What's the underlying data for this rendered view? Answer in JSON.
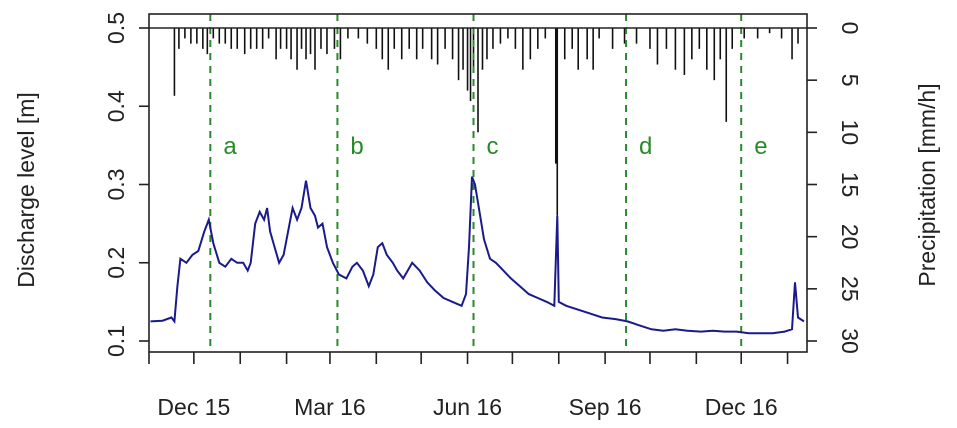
{
  "chart_data": {
    "type": "line",
    "xlabel": "",
    "ylabel_left": "Discharge level [m]",
    "ylabel_right": "Precipitation [mm/h]",
    "ylim_left": [
      0.1,
      0.5
    ],
    "ylim_right_inverted": [
      0,
      30
    ],
    "xlim_days_label": "Nov 2015 – Jan 2017",
    "x_ticks": [
      {
        "label": "Dec 15",
        "date": "2015-12-01"
      },
      {
        "label": "Mar 16",
        "date": "2016-03-01"
      },
      {
        "label": "Jun 16",
        "date": "2016-06-01"
      },
      {
        "label": "Sep 16",
        "date": "2016-09-01"
      },
      {
        "label": "Dec 16",
        "date": "2016-12-01"
      }
    ],
    "x_minor_ticks": [
      "2015-11-01",
      "2016-01-01",
      "2016-02-01",
      "2016-04-01",
      "2016-05-01",
      "2016-07-01",
      "2016-08-01",
      "2016-10-01",
      "2016-11-01",
      "2017-01-01"
    ],
    "y_ticks_left": [
      0.1,
      0.2,
      0.3,
      0.4,
      0.5
    ],
    "y_tick_labels_left": [
      "0.1",
      "0.2",
      "0.3",
      "0.4",
      "0.5"
    ],
    "y_ticks_right": [
      0,
      5,
      10,
      15,
      20,
      25,
      30
    ],
    "y_tick_labels_right": [
      "0",
      "5",
      "10",
      "15",
      "20",
      "25",
      "30"
    ],
    "events": [
      {
        "label": "a",
        "date": "2015-12-12"
      },
      {
        "label": "b",
        "date": "2016-03-06"
      },
      {
        "label": "c",
        "date": "2016-06-05"
      },
      {
        "label": "d",
        "date": "2016-09-15"
      },
      {
        "label": "e",
        "date": "2016-12-01"
      }
    ],
    "series": [
      {
        "kind": "discharge",
        "color": "#1a1a8c",
        "points": [
          [
            "2015-11-02",
            0.125
          ],
          [
            "2015-11-10",
            0.126
          ],
          [
            "2015-11-16",
            0.13
          ],
          [
            "2015-11-18",
            0.125
          ],
          [
            "2015-11-20",
            0.17
          ],
          [
            "2015-11-22",
            0.205
          ],
          [
            "2015-11-26",
            0.2
          ],
          [
            "2015-11-30",
            0.21
          ],
          [
            "2015-12-04",
            0.215
          ],
          [
            "2015-12-08",
            0.24
          ],
          [
            "2015-12-11",
            0.255
          ],
          [
            "2015-12-14",
            0.225
          ],
          [
            "2015-12-18",
            0.2
          ],
          [
            "2015-12-22",
            0.195
          ],
          [
            "2015-12-26",
            0.205
          ],
          [
            "2015-12-30",
            0.2
          ],
          [
            "2016-01-03",
            0.2
          ],
          [
            "2016-01-06",
            0.19
          ],
          [
            "2016-01-08",
            0.2
          ],
          [
            "2016-01-11",
            0.25
          ],
          [
            "2016-01-14",
            0.265
          ],
          [
            "2016-01-17",
            0.255
          ],
          [
            "2016-01-19",
            0.27
          ],
          [
            "2016-01-21",
            0.24
          ],
          [
            "2016-01-24",
            0.22
          ],
          [
            "2016-01-27",
            0.2
          ],
          [
            "2016-01-30",
            0.21
          ],
          [
            "2016-02-03",
            0.25
          ],
          [
            "2016-02-05",
            0.27
          ],
          [
            "2016-02-08",
            0.255
          ],
          [
            "2016-02-11",
            0.27
          ],
          [
            "2016-02-14",
            0.305
          ],
          [
            "2016-02-17",
            0.27
          ],
          [
            "2016-02-20",
            0.26
          ],
          [
            "2016-02-22",
            0.245
          ],
          [
            "2016-02-25",
            0.25
          ],
          [
            "2016-02-28",
            0.22
          ],
          [
            "2016-03-03",
            0.2
          ],
          [
            "2016-03-07",
            0.185
          ],
          [
            "2016-03-12",
            0.18
          ],
          [
            "2016-03-16",
            0.195
          ],
          [
            "2016-03-19",
            0.2
          ],
          [
            "2016-03-23",
            0.19
          ],
          [
            "2016-03-27",
            0.17
          ],
          [
            "2016-03-30",
            0.185
          ],
          [
            "2016-04-02",
            0.22
          ],
          [
            "2016-04-05",
            0.225
          ],
          [
            "2016-04-08",
            0.21
          ],
          [
            "2016-04-12",
            0.2
          ],
          [
            "2016-04-15",
            0.19
          ],
          [
            "2016-04-19",
            0.18
          ],
          [
            "2016-04-22",
            0.19
          ],
          [
            "2016-04-25",
            0.2
          ],
          [
            "2016-04-30",
            0.19
          ],
          [
            "2016-05-05",
            0.175
          ],
          [
            "2016-05-10",
            0.165
          ],
          [
            "2016-05-16",
            0.155
          ],
          [
            "2016-05-22",
            0.15
          ],
          [
            "2016-05-28",
            0.145
          ],
          [
            "2016-05-31",
            0.16
          ],
          [
            "2016-06-02",
            0.22
          ],
          [
            "2016-06-04",
            0.31
          ],
          [
            "2016-06-06",
            0.3
          ],
          [
            "2016-06-09",
            0.265
          ],
          [
            "2016-06-12",
            0.23
          ],
          [
            "2016-06-16",
            0.205
          ],
          [
            "2016-06-20",
            0.2
          ],
          [
            "2016-06-25",
            0.19
          ],
          [
            "2016-06-30",
            0.18
          ],
          [
            "2016-07-06",
            0.17
          ],
          [
            "2016-07-12",
            0.16
          ],
          [
            "2016-07-18",
            0.155
          ],
          [
            "2016-07-24",
            0.15
          ],
          [
            "2016-07-29",
            0.145
          ],
          [
            "2016-07-31",
            0.26
          ],
          [
            "2016-08-01",
            0.15
          ],
          [
            "2016-08-06",
            0.145
          ],
          [
            "2016-08-14",
            0.14
          ],
          [
            "2016-08-22",
            0.135
          ],
          [
            "2016-08-30",
            0.13
          ],
          [
            "2016-09-08",
            0.128
          ],
          [
            "2016-09-16",
            0.125
          ],
          [
            "2016-09-24",
            0.12
          ],
          [
            "2016-10-02",
            0.115
          ],
          [
            "2016-10-10",
            0.113
          ],
          [
            "2016-10-18",
            0.115
          ],
          [
            "2016-10-26",
            0.113
          ],
          [
            "2016-11-04",
            0.112
          ],
          [
            "2016-11-12",
            0.113
          ],
          [
            "2016-11-20",
            0.112
          ],
          [
            "2016-11-28",
            0.112
          ],
          [
            "2016-12-06",
            0.11
          ],
          [
            "2016-12-14",
            0.11
          ],
          [
            "2016-12-22",
            0.11
          ],
          [
            "2016-12-30",
            0.112
          ],
          [
            "2017-01-04",
            0.115
          ],
          [
            "2017-01-06",
            0.175
          ],
          [
            "2017-01-08",
            0.13
          ],
          [
            "2017-01-12",
            0.125
          ]
        ]
      },
      {
        "kind": "precipitation",
        "color": "#111111",
        "bars": [
          [
            "2015-11-18",
            6.5
          ],
          [
            "2015-11-21",
            2
          ],
          [
            "2015-11-25",
            1
          ],
          [
            "2015-11-29",
            1.5
          ],
          [
            "2015-12-03",
            1.5
          ],
          [
            "2015-12-07",
            2
          ],
          [
            "2015-12-10",
            2.5
          ],
          [
            "2015-12-14",
            1
          ],
          [
            "2015-12-18",
            1.5
          ],
          [
            "2015-12-22",
            1.5
          ],
          [
            "2015-12-26",
            2
          ],
          [
            "2015-12-30",
            2
          ],
          [
            "2016-01-04",
            2.5
          ],
          [
            "2016-01-08",
            2
          ],
          [
            "2016-01-12",
            2
          ],
          [
            "2016-01-16",
            2
          ],
          [
            "2016-01-20",
            1
          ],
          [
            "2016-01-25",
            3
          ],
          [
            "2016-01-28",
            2
          ],
          [
            "2016-02-01",
            2
          ],
          [
            "2016-02-04",
            3
          ],
          [
            "2016-02-08",
            4
          ],
          [
            "2016-02-11",
            2
          ],
          [
            "2016-02-14",
            3
          ],
          [
            "2016-02-17",
            2.5
          ],
          [
            "2016-02-20",
            4
          ],
          [
            "2016-02-24",
            2
          ],
          [
            "2016-02-28",
            2.5
          ],
          [
            "2016-03-04",
            2
          ],
          [
            "2016-03-08",
            3
          ],
          [
            "2016-03-13",
            1
          ],
          [
            "2016-03-20",
            1
          ],
          [
            "2016-03-26",
            1.5
          ],
          [
            "2016-04-01",
            2
          ],
          [
            "2016-04-05",
            3
          ],
          [
            "2016-04-09",
            4
          ],
          [
            "2016-04-13",
            2
          ],
          [
            "2016-04-18",
            3
          ],
          [
            "2016-04-23",
            2
          ],
          [
            "2016-04-28",
            3
          ],
          [
            "2016-05-02",
            2
          ],
          [
            "2016-05-08",
            3
          ],
          [
            "2016-05-12",
            3.5
          ],
          [
            "2016-05-17",
            2
          ],
          [
            "2016-05-22",
            3
          ],
          [
            "2016-05-26",
            5
          ],
          [
            "2016-05-29",
            4
          ],
          [
            "2016-06-01",
            6
          ],
          [
            "2016-06-03",
            7
          ],
          [
            "2016-06-05",
            4
          ],
          [
            "2016-06-08",
            10
          ],
          [
            "2016-06-11",
            4
          ],
          [
            "2016-06-14",
            3
          ],
          [
            "2016-06-18",
            2
          ],
          [
            "2016-06-23",
            1.5
          ],
          [
            "2016-06-28",
            1
          ],
          [
            "2016-07-03",
            2
          ],
          [
            "2016-07-08",
            4
          ],
          [
            "2016-07-13",
            3
          ],
          [
            "2016-07-18",
            2
          ],
          [
            "2016-07-23",
            1
          ],
          [
            "2016-07-30",
            13
          ],
          [
            "2016-07-31",
            18
          ],
          [
            "2016-08-05",
            3
          ],
          [
            "2016-08-10",
            2
          ],
          [
            "2016-08-14",
            4
          ],
          [
            "2016-08-20",
            3
          ],
          [
            "2016-08-24",
            4
          ],
          [
            "2016-08-28",
            1
          ],
          [
            "2016-09-06",
            2
          ],
          [
            "2016-09-14",
            1.5
          ],
          [
            "2016-09-22",
            1.5
          ],
          [
            "2016-10-01",
            2
          ],
          [
            "2016-10-06",
            3.5
          ],
          [
            "2016-10-12",
            2
          ],
          [
            "2016-10-18",
            4
          ],
          [
            "2016-10-24",
            4.5
          ],
          [
            "2016-10-29",
            3
          ],
          [
            "2016-11-03",
            2
          ],
          [
            "2016-11-08",
            4
          ],
          [
            "2016-11-13",
            5
          ],
          [
            "2016-11-17",
            3
          ],
          [
            "2016-11-21",
            9
          ],
          [
            "2016-11-25",
            2
          ],
          [
            "2016-12-03",
            1
          ],
          [
            "2016-12-12",
            1
          ],
          [
            "2016-12-20",
            0.5
          ],
          [
            "2016-12-28",
            1
          ],
          [
            "2017-01-04",
            3
          ],
          [
            "2017-01-08",
            1.5
          ]
        ]
      }
    ]
  }
}
